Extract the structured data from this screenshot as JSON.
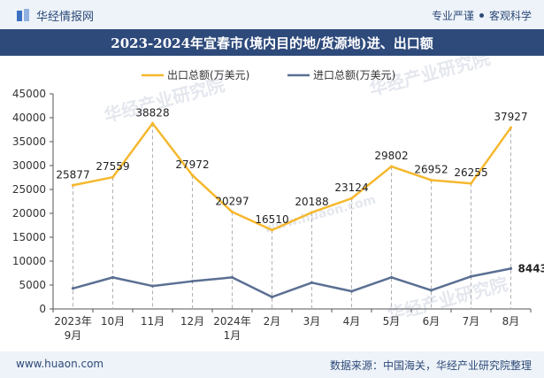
{
  "header": {
    "brand": "华经情报网",
    "slogan_left": "专业严谨",
    "slogan_right": "客观科学"
  },
  "chart_data": {
    "type": "line",
    "title": "2023-2024年宜春市(境内目的地/货源地)进、出口额",
    "categories": [
      "2023年\n9月",
      "10月",
      "11月",
      "12月",
      "2024年\n1月",
      "2月",
      "3月",
      "4月",
      "5月",
      "6月",
      "7月",
      "8月"
    ],
    "series": [
      {
        "name": "出口总额(万美元)",
        "color": "#f5b82e",
        "values": [
          25877,
          27559,
          38828,
          27972,
          20297,
          16510,
          20188,
          23124,
          29802,
          26952,
          26255,
          37927
        ],
        "labels": [
          "25877",
          "27559",
          "38828",
          "27972",
          "20297",
          "16510",
          "20188",
          "23124",
          "29802",
          "26952",
          "26255",
          "37927"
        ]
      },
      {
        "name": "进口总额(万美元)",
        "color": "#5b6f93",
        "values": [
          4300,
          6600,
          4800,
          5800,
          6600,
          2500,
          5500,
          3700,
          6600,
          3900,
          6800,
          8443
        ],
        "end_label": "8443"
      }
    ],
    "ylim": [
      0,
      45000
    ],
    "yticks": [
      "0",
      "5000",
      "10000",
      "15000",
      "20000",
      "25000",
      "30000",
      "35000",
      "40000",
      "45000"
    ],
    "xlabel": "",
    "ylabel": "",
    "legend_position": "top-center"
  },
  "footer": {
    "url": "www.huaon.com",
    "source": "数据来源：中国海关，华经产业研究院整理"
  },
  "watermark": {
    "cn": "华经产业研究院",
    "en": "www.huaon.com"
  }
}
